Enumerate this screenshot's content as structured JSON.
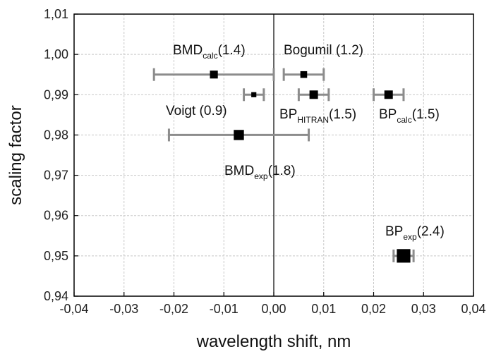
{
  "chart_data": {
    "type": "scatter",
    "title": "",
    "xlabel": "wavelength shift, nm",
    "ylabel": "scaling factor",
    "xlim": [
      -0.04,
      0.04
    ],
    "ylim": [
      0.94,
      1.01
    ],
    "grid": true,
    "x_ticks": [
      "-0,04",
      "-0,03",
      "-0,02",
      "-0,01",
      "0,00",
      "0,01",
      "0,02",
      "0,03",
      "0,04"
    ],
    "y_ticks": [
      "0,94",
      "0,95",
      "0,96",
      "0,97",
      "0,98",
      "0,99",
      "1,00",
      "1,01"
    ],
    "vertical_reference_line_x": 0,
    "marker_color": "#000000",
    "errorbar_color": "#8c8c8c",
    "points": [
      {
        "main": "BMD",
        "sub": "calc",
        "value": "(1.4)",
        "x": -0.012,
        "y": 0.995,
        "xerr_low": -0.024,
        "xerr_high": 0.0,
        "marker_size": 1.4
      },
      {
        "main": "Bogumil",
        "sub": "",
        "value": "(1.2)",
        "x": 0.006,
        "y": 0.995,
        "xerr_low": 0.002,
        "xerr_high": 0.01,
        "marker_size": 1.2
      },
      {
        "main": "Voigt",
        "sub": "",
        "value": "(0.9)",
        "x": -0.004,
        "y": 0.99,
        "xerr_low": -0.006,
        "xerr_high": -0.002,
        "marker_size": 0.9
      },
      {
        "main": "BP",
        "sub": "HITRAN",
        "value": "(1.5)",
        "x": 0.008,
        "y": 0.99,
        "xerr_low": 0.005,
        "xerr_high": 0.011,
        "marker_size": 1.5
      },
      {
        "main": "BP",
        "sub": "calc",
        "value": "(1.5)",
        "x": 0.023,
        "y": 0.99,
        "xerr_low": 0.02,
        "xerr_high": 0.026,
        "marker_size": 1.5
      },
      {
        "main": "BMD",
        "sub": "exp",
        "value": "(1.8)",
        "x": -0.007,
        "y": 0.98,
        "xerr_low": -0.021,
        "xerr_high": 0.007,
        "marker_size": 1.8
      },
      {
        "main": "BP",
        "sub": "exp",
        "value": "(2.4)",
        "x": 0.026,
        "y": 0.95,
        "xerr_low": 0.024,
        "xerr_high": 0.028,
        "marker_size": 2.4
      }
    ]
  }
}
